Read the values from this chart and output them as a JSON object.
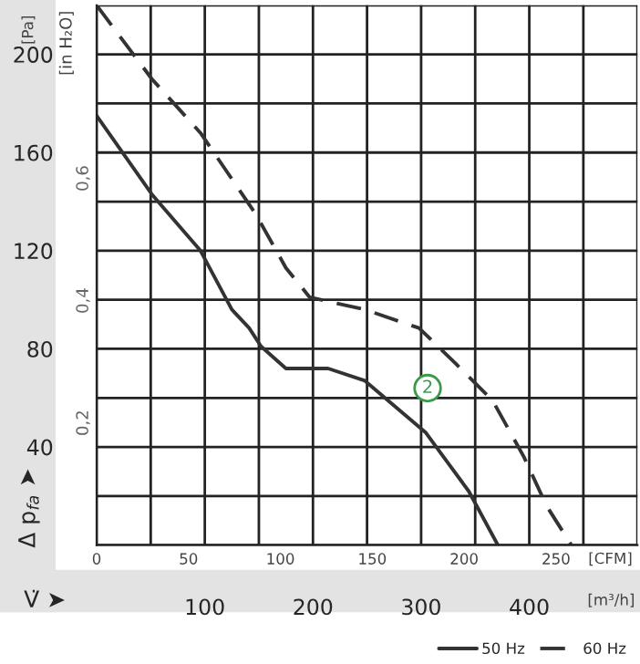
{
  "chart_data": {
    "type": "line",
    "xlabel": "V̇ ➤",
    "ylabel": "Δ p$_{fa}$ ➤",
    "y2label": "[in H₂O]",
    "x2label": "[CFM]",
    "annotations": [
      "[Pa]",
      "[m³/h]",
      {
        "text": "2",
        "x": 306,
        "y": 64
      }
    ],
    "series": [
      {
        "name": "50 Hz",
        "color": "#333333",
        "line_style": "solid",
        "x": [
          0,
          51,
          96,
          125,
          141,
          152,
          175,
          214,
          248,
          304,
          344,
          371
        ],
        "values": [
          175,
          143,
          120,
          96,
          88.5,
          81,
          72,
          72,
          67,
          46,
          22,
          0
        ]
      },
      {
        "name": "60 Hz",
        "color": "#333333",
        "line_style": "dashed",
        "x": [
          0,
          51,
          96,
          147,
          175,
          197,
          248,
          298,
          332,
          366,
          395,
          416,
          439
        ],
        "values": [
          220,
          190,
          168,
          135,
          113,
          101,
          96,
          88.5,
          74,
          59,
          36,
          16,
          0
        ]
      }
    ],
    "xlim": [
      0,
      500
    ],
    "xticks": [
      {
        "value": 0,
        "label": null
      },
      {
        "value": 50,
        "label": null
      },
      100,
      {
        "value": 150,
        "label": null
      },
      200,
      {
        "value": 250,
        "label": null
      },
      300,
      {
        "value": 350,
        "label": null
      },
      400,
      {
        "value": 450,
        "label": null
      },
      {
        "value": 500,
        "label": null
      }
    ],
    "x2lim": [
      0,
      294.3
    ],
    "x2ticks": [
      0,
      50,
      100,
      150,
      200,
      250
    ],
    "ylim": [
      0,
      220
    ],
    "yticks": [
      {
        "value": 0,
        "label": null
      },
      {
        "value": 20,
        "label": null
      },
      40,
      {
        "value": 60,
        "label": null
      },
      80,
      {
        "value": 100,
        "label": null
      },
      120,
      {
        "value": 140,
        "label": null
      },
      160,
      {
        "value": 180,
        "label": null
      },
      200,
      {
        "value": 220,
        "label": null
      }
    ],
    "y2lim": [
      0,
      0.883
    ],
    "y2ticks": [
      {
        "value": 0.2,
        "label": "0,2"
      },
      {
        "value": 0.4,
        "label": "0,4"
      },
      {
        "value": 0.6,
        "label": "0,6"
      }
    ],
    "grid": true,
    "legend": "bottom right"
  }
}
